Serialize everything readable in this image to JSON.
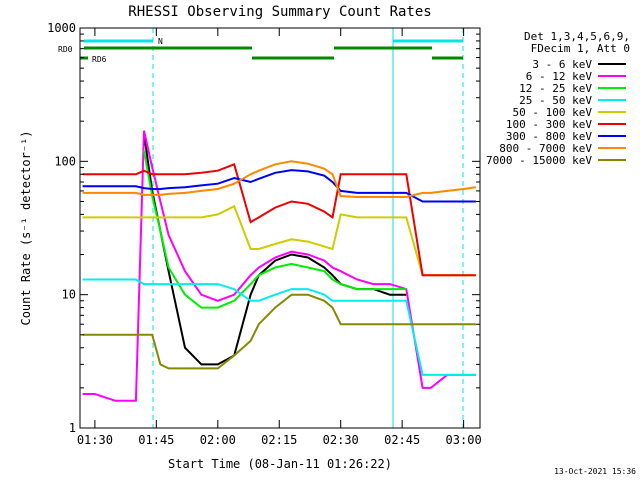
{
  "chart_data": {
    "type": "line",
    "title": "RHESSI Observing Summary Count Rates",
    "xlabel": "Start Time (08-Jan-11 01:26:22)",
    "ylabel": "Count Rate (s⁻¹ detector⁻¹)",
    "y_scale": "log",
    "ylim": [
      1,
      1000
    ],
    "xlim": [
      "01:26:22",
      "03:04:00"
    ],
    "x_ticks": [
      "01:30",
      "01:45",
      "02:00",
      "02:15",
      "02:30",
      "02:45",
      "03:00"
    ],
    "y_ticks": [
      "1",
      "10",
      "100",
      "1000"
    ],
    "grid": false,
    "legend_position": "right",
    "legend_header": [
      "Det 1,3,4,5,6,9,",
      "FDecim 1, Att 0"
    ],
    "footer": "13-Oct-2021 15:36",
    "flag_labels": {
      "rd0": "RD0",
      "rd6": "RD6",
      "n": "N"
    },
    "x": [
      "01:27",
      "01:30",
      "01:35",
      "01:40",
      "01:42",
      "01:44",
      "01:46",
      "01:48",
      "01:52",
      "01:56",
      "02:00",
      "02:04",
      "02:08",
      "02:10",
      "02:14",
      "02:18",
      "02:22",
      "02:26",
      "02:28",
      "02:30",
      "02:34",
      "02:38",
      "02:42",
      "02:46",
      "02:50",
      "02:52",
      "02:56",
      "03:00",
      "03:03"
    ],
    "series": [
      {
        "name": "3 - 6 keV",
        "color": "#000000",
        "values": [
          null,
          null,
          null,
          null,
          160,
          60,
          30,
          15,
          4,
          3,
          3,
          3.5,
          10,
          14,
          18,
          20,
          19,
          16,
          14,
          12,
          11,
          11,
          10,
          10,
          null,
          null,
          null,
          null,
          null
        ]
      },
      {
        "name": "6 - 12 keV",
        "color": "#ff00ff",
        "values": [
          1.8,
          1.8,
          1.6,
          1.6,
          170,
          90,
          50,
          28,
          15,
          10,
          9,
          10,
          14,
          16,
          19,
          21,
          20,
          18,
          16,
          15,
          13,
          12,
          12,
          11,
          2,
          2,
          2.5,
          2.5,
          2.5
        ]
      },
      {
        "name": "12 - 25 keV",
        "color": "#00ee00",
        "values": [
          null,
          null,
          null,
          null,
          120,
          55,
          30,
          16,
          10,
          8,
          8,
          9,
          12,
          14,
          16,
          17,
          16,
          15,
          13,
          12,
          11,
          11,
          11,
          11,
          null,
          null,
          null,
          null,
          null
        ]
      },
      {
        "name": "25 - 50 keV",
        "color": "#00eeee",
        "values": [
          13,
          13,
          13,
          13,
          12,
          12,
          12,
          12,
          12,
          12,
          12,
          11,
          9,
          9,
          10,
          11,
          11,
          10,
          9,
          9,
          9,
          9,
          9,
          9,
          2.5,
          2.5,
          2.5,
          2.5,
          2.5
        ]
      },
      {
        "name": "50 - 100 keV",
        "color": "#cccc00",
        "values": [
          38,
          38,
          38,
          38,
          38,
          38,
          38,
          38,
          38,
          38,
          40,
          46,
          22,
          22,
          24,
          26,
          25,
          23,
          22,
          40,
          38,
          38,
          38,
          38,
          14,
          14,
          14,
          14,
          14
        ]
      },
      {
        "name": "100 - 300 keV",
        "color": "#ee0000",
        "values": [
          80,
          80,
          80,
          80,
          85,
          80,
          80,
          80,
          80,
          82,
          85,
          95,
          35,
          38,
          45,
          50,
          48,
          42,
          38,
          80,
          80,
          80,
          80,
          80,
          14,
          14,
          14,
          14,
          14
        ]
      },
      {
        "name": "300 - 800 keV",
        "color": "#0000ee",
        "values": [
          65,
          65,
          65,
          65,
          63,
          62,
          62,
          63,
          64,
          66,
          68,
          75,
          70,
          74,
          82,
          86,
          84,
          78,
          70,
          60,
          58,
          58,
          58,
          58,
          50,
          50,
          50,
          50,
          50
        ]
      },
      {
        "name": "800 - 7000 keV",
        "color": "#ff8800",
        "values": [
          58,
          58,
          58,
          58,
          56,
          56,
          56,
          57,
          58,
          60,
          62,
          68,
          80,
          85,
          95,
          100,
          96,
          88,
          80,
          55,
          54,
          54,
          54,
          54,
          58,
          58,
          60,
          62,
          64
        ]
      },
      {
        "name": "7000 - 15000 keV",
        "color": "#888800",
        "values": [
          5,
          5,
          5,
          5,
          5,
          5,
          3,
          2.8,
          2.8,
          2.8,
          2.8,
          3.5,
          4.5,
          6,
          8,
          10,
          10,
          9,
          8,
          6,
          6,
          6,
          6,
          6,
          6,
          6,
          6,
          6,
          6
        ]
      }
    ]
  }
}
